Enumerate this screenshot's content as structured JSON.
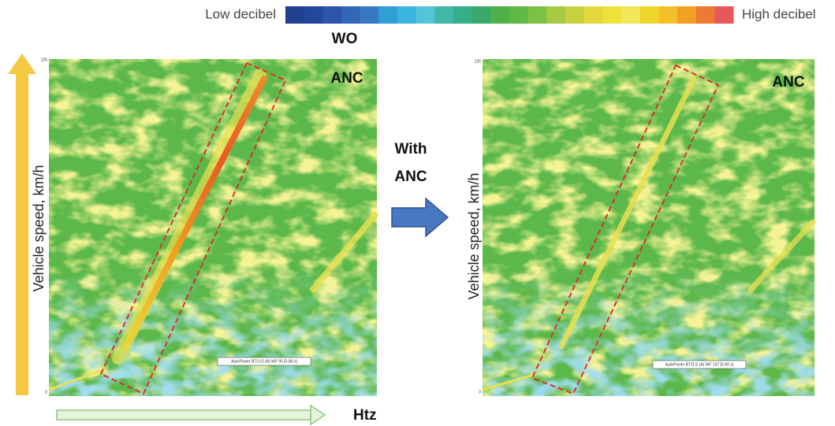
{
  "colorbar": {
    "low_label": "Low decibel",
    "high_label": "High decibel"
  },
  "header": {
    "title": "WO"
  },
  "panels": [
    {
      "tag": "ANC",
      "y_axis_label": "Vehicle speed, km/h",
      "y_top": "125",
      "y_bottom": "0",
      "legend_box": "AutoPower BT:D:S (A) WF 95 [0-80 s]"
    },
    {
      "tag": "ANC",
      "y_axis_label": "Vehicle speed, km/h",
      "y_top": "125",
      "y_bottom": "0",
      "legend_box": "AutoPower BT:D:S (A) WF 137 [0-60 s]"
    }
  ],
  "transition": {
    "line1": "With",
    "line2": "ANC"
  },
  "x_axis_label": "Htz"
}
